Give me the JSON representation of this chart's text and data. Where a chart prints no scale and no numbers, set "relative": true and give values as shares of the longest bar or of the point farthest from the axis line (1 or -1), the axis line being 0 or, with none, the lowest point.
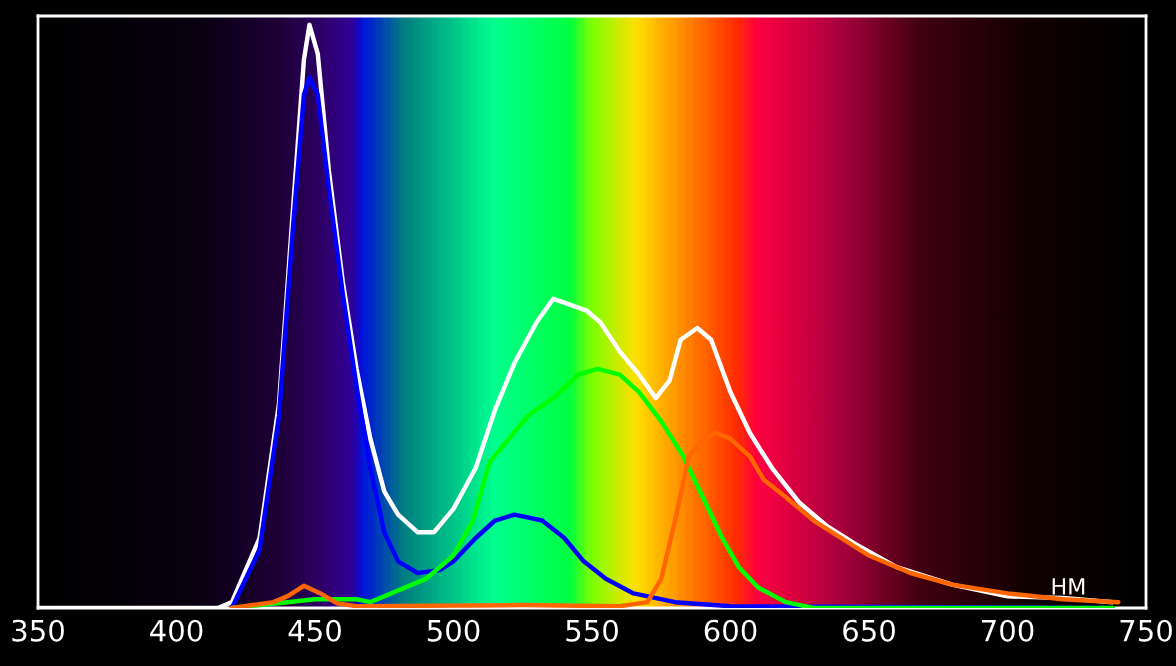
{
  "chart_data": {
    "type": "line",
    "relative": true,
    "xlabel": "НМ",
    "xlim": [
      350,
      750
    ],
    "xticks": [
      350,
      400,
      450,
      500,
      550,
      600,
      650,
      700,
      750
    ],
    "grid": false,
    "legend": false,
    "marker": "none",
    "line_style": "solid",
    "series": [
      {
        "color": "#ffffff",
        "x": [
          350,
          415,
          420,
          430,
          437,
          442,
          446,
          448,
          451,
          455,
          460,
          465,
          470,
          475,
          480,
          487,
          493,
          500,
          508,
          515,
          522,
          530,
          536,
          542,
          548,
          553,
          560,
          567,
          573,
          578,
          582,
          588,
          593,
          600,
          607,
          615,
          625,
          635,
          645,
          660,
          680,
          700,
          720,
          738
        ],
        "values": [
          0,
          0,
          0.01,
          0.12,
          0.35,
          0.68,
          0.94,
          1,
          0.95,
          0.75,
          0.56,
          0.41,
          0.29,
          0.2,
          0.16,
          0.13,
          0.13,
          0.17,
          0.24,
          0.34,
          0.42,
          0.49,
          0.53,
          0.52,
          0.51,
          0.49,
          0.44,
          0.4,
          0.36,
          0.39,
          0.46,
          0.48,
          0.46,
          0.37,
          0.3,
          0.24,
          0.18,
          0.14,
          0.11,
          0.07,
          0.04,
          0.02,
          0.017,
          0.01
        ]
      },
      {
        "color": "#0000ff",
        "x": [
          420,
          430,
          437,
          442,
          446,
          448,
          451,
          455,
          460,
          465,
          470,
          475,
          480,
          487,
          495,
          500,
          508,
          515,
          522,
          532,
          540,
          547,
          555,
          565,
          580,
          600,
          738
        ],
        "values": [
          0,
          0.1,
          0.33,
          0.65,
          0.88,
          0.91,
          0.88,
          0.72,
          0.54,
          0.38,
          0.24,
          0.13,
          0.08,
          0.06,
          0.065,
          0.08,
          0.12,
          0.15,
          0.16,
          0.15,
          0.12,
          0.08,
          0.05,
          0.025,
          0.01,
          0.003,
          0
        ]
      },
      {
        "color": "#00ff00",
        "x": [
          420,
          440,
          450,
          465,
          470,
          480,
          490,
          500,
          507,
          513,
          520,
          527,
          536,
          545,
          552,
          560,
          567,
          575,
          583,
          590,
          597,
          603,
          610,
          620,
          630,
          738
        ],
        "values": [
          0,
          0.01,
          0.015,
          0.015,
          0.01,
          0.03,
          0.05,
          0.09,
          0.15,
          0.25,
          0.29,
          0.33,
          0.36,
          0.4,
          0.41,
          0.4,
          0.37,
          0.32,
          0.26,
          0.19,
          0.12,
          0.07,
          0.035,
          0.01,
          0,
          0
        ]
      },
      {
        "color": "#ff6600",
        "x": [
          420,
          435,
          440,
          446,
          452,
          458,
          465,
          525,
          560,
          570,
          575,
          580,
          585,
          590,
          595,
          600,
          607,
          612,
          620,
          630,
          640,
          650,
          665,
          680,
          700,
          720,
          740
        ],
        "values": [
          0,
          0.01,
          0.02,
          0.038,
          0.025,
          0.008,
          0.003,
          0.005,
          0.003,
          0.01,
          0.05,
          0.15,
          0.26,
          0.29,
          0.3,
          0.29,
          0.26,
          0.22,
          0.19,
          0.15,
          0.12,
          0.09,
          0.06,
          0.04,
          0.025,
          0.015,
          0.01
        ]
      }
    ]
  }
}
